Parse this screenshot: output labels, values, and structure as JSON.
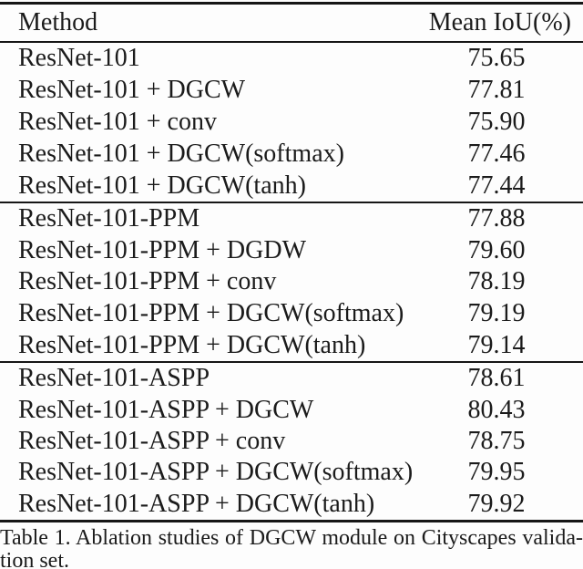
{
  "table": {
    "header": {
      "method": "Method",
      "mean_iou": "Mean IoU(%)"
    },
    "sections": [
      {
        "rows": [
          {
            "method": "ResNet-101",
            "value": "75.65"
          },
          {
            "method": "ResNet-101 + DGCW",
            "value": "77.81"
          },
          {
            "method": "ResNet-101 + conv",
            "value": "75.90"
          },
          {
            "method": "ResNet-101 + DGCW(softmax)",
            "value": "77.46"
          },
          {
            "method": "ResNet-101 + DGCW(tanh)",
            "value": "77.44"
          }
        ]
      },
      {
        "rows": [
          {
            "method": "ResNet-101-PPM",
            "value": "77.88"
          },
          {
            "method": "ResNet-101-PPM + DGDW",
            "value": "79.60"
          },
          {
            "method": "ResNet-101-PPM + conv",
            "value": "78.19"
          },
          {
            "method": "ResNet-101-PPM + DGCW(softmax)",
            "value": "79.19"
          },
          {
            "method": "ResNet-101-PPM + DGCW(tanh)",
            "value": "79.14"
          }
        ]
      },
      {
        "rows": [
          {
            "method": "ResNet-101-ASPP",
            "value": "78.61"
          },
          {
            "method": "ResNet-101-ASPP + DGCW",
            "value": "80.43"
          },
          {
            "method": "ResNet-101-ASPP + conv",
            "value": "78.75"
          },
          {
            "method": "ResNet-101-ASPP + DGCW(softmax)",
            "value": "79.95"
          },
          {
            "method": "ResNet-101-ASPP + DGCW(tanh)",
            "value": "79.92"
          }
        ]
      }
    ]
  },
  "caption": {
    "lines": [
      "Table 1. Ablation studies of DGCW module on Cityscapes valida-",
      "tion set."
    ]
  },
  "colors": {
    "text": "#1b1b1b",
    "rule": "#161616",
    "background": "#fdfdfd"
  }
}
